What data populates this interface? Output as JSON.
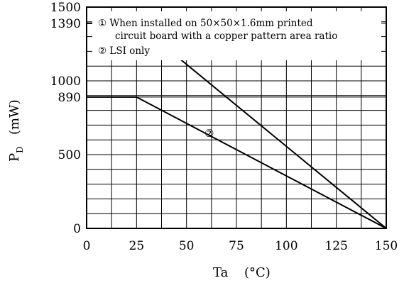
{
  "chart_data": {
    "type": "line",
    "x": [
      0,
      25,
      150
    ],
    "xticks": [
      "0",
      "25",
      "50",
      "75",
      "100",
      "125",
      "150"
    ],
    "yticks": [
      "0",
      "500",
      "890",
      "1000",
      "1390",
      "1500"
    ],
    "xlim": [
      0,
      150
    ],
    "ylim": [
      0,
      1500
    ],
    "grid": true,
    "ylabel": "P",
    "ylabel_sub": "D",
    "ylabel_unit": "(mW)",
    "xlabel": "Ta",
    "xlabel_unit": "(°C)",
    "series": [
      {
        "name": "①",
        "points": [
          [
            0,
            1390
          ],
          [
            25,
            1390
          ],
          [
            150,
            0
          ]
        ]
      },
      {
        "name": "②",
        "points": [
          [
            0,
            890
          ],
          [
            25,
            890
          ],
          [
            150,
            0
          ]
        ]
      }
    ],
    "notes": [
      "① When installed on 50×50×1.6mm printed",
      "circuit board with a copper pattern area ratio",
      "② LSI only"
    ]
  }
}
